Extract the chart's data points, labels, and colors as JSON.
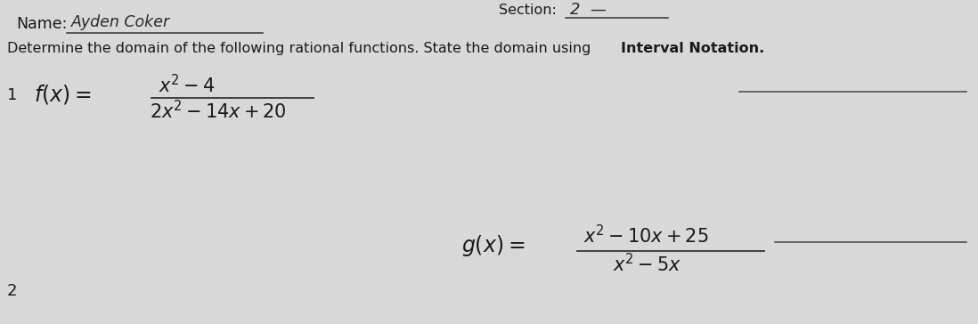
{
  "background_color": "#d8d8d8",
  "name_label": "Name:",
  "name_text": "Ayden Coker",
  "section_label": "Section:",
  "section_text": "2  —",
  "instruction_text": "Determine the domain of the following rational functions. State the domain using ",
  "instruction_bold": "Interval Notation.",
  "line_color": "#333333",
  "text_color": "#1a1a1a",
  "answer_line_color": "#444444",
  "handwriting_color": "#2a2a2a"
}
